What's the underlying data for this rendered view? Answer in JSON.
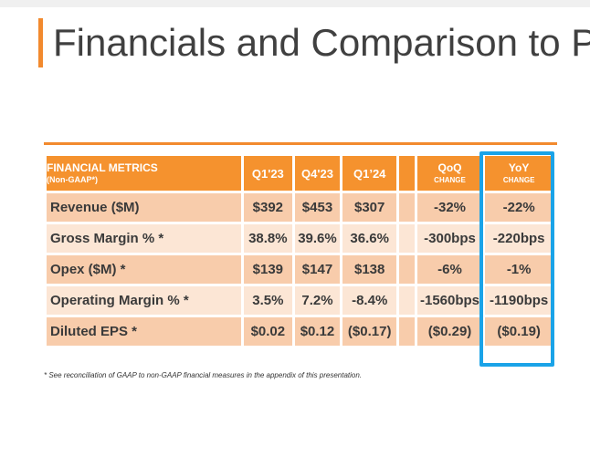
{
  "title": "Financials and Comparison to Pri",
  "table": {
    "header": {
      "label_main": "FINANCIAL METRICS",
      "label_sub": "(Non-GAAP*)",
      "q1_23": "Q1'23",
      "q4_23": "Q4'23",
      "q1_24": "Q1’24",
      "qoq_main": "QoQ",
      "qoq_sub": "CHANGE",
      "yoy_main": "YoY",
      "yoy_sub": "CHANGE"
    },
    "rows": [
      {
        "label": "Revenue ($M)",
        "q1_23": "$392",
        "q4_23": "$453",
        "q1_24": "$307",
        "qoq": "-32%",
        "yoy": "-22%"
      },
      {
        "label": "Gross Margin % *",
        "q1_23": "38.8%",
        "q4_23": "39.6%",
        "q1_24": "36.6%",
        "qoq": "-300bps",
        "yoy": "-220bps"
      },
      {
        "label": "Opex ($M) *",
        "q1_23": "$139",
        "q4_23": "$147",
        "q1_24": "$138",
        "qoq": "-6%",
        "yoy": "-1%"
      },
      {
        "label": "Operating Margin % *",
        "q1_23": "3.5%",
        "q4_23": "7.2%",
        "q1_24": "-8.4%",
        "qoq": "-1560bps",
        "yoy": "-1190bps"
      },
      {
        "label": "Diluted EPS *",
        "q1_23": "$0.02",
        "q4_23": "$0.12",
        "q1_24": "($0.17)",
        "qoq": "($0.29)",
        "yoy": "($0.19)"
      }
    ]
  },
  "footnote": "* See reconciliation of GAAP to non-GAAP financial measures in the appendix of this presentation.",
  "colors": {
    "accent_orange": "#f28a2e",
    "header_orange": "#f5922e",
    "row_dark": "#f8ccab",
    "row_light": "#fce6d5",
    "highlight_blue": "#1aa3e8"
  }
}
